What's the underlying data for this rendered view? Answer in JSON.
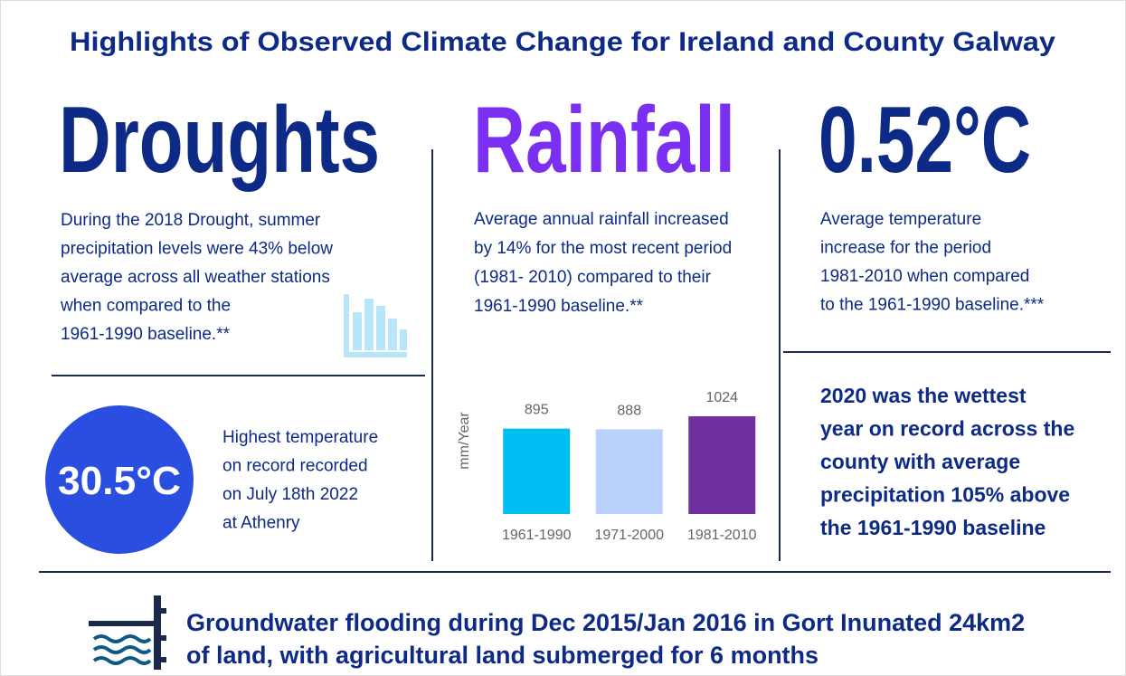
{
  "title": "Highlights of Observed Climate Change for Ireland and County Galway",
  "droughts": {
    "heading": "Droughts",
    "lines": [
      "During the 2018 Drought, summer",
      "precipitation levels were 43% below",
      "average across all weather stations",
      "when compared to the",
      "1961-1990 baseline.**"
    ]
  },
  "record": {
    "value": "30.5°C",
    "lines": [
      "Highest temperature",
      "on record recorded",
      "on July 18th 2022",
      "at Athenry"
    ]
  },
  "rainfall": {
    "heading": "Rainfall",
    "lines": [
      "Average annual rainfall increased",
      "by 14% for the most recent period",
      "(1981- 2010) compared to their",
      "1961-1990 baseline.**"
    ]
  },
  "temperature": {
    "heading": "0.52°C",
    "lines": [
      "Average temperature",
      "increase for the period",
      "1981-2010 when compared",
      "to the 1961-1990 baseline.***"
    ]
  },
  "wettest": {
    "lines": [
      "2020 was the wettest",
      "year on record across the",
      "county with average",
      "precipitation 105% above",
      "the 1961-1990 baseline"
    ]
  },
  "flooding": {
    "lines": [
      "Groundwater flooding during Dec 2015/Jan 2016 in Gort Inunated 24km2",
      "of land, with agricultural land submerged for 6 months"
    ]
  },
  "chart_data": {
    "type": "bar",
    "y_label": "mm/Year",
    "categories": [
      "1961-1990",
      "1971-2000",
      "1981-2010"
    ],
    "values": [
      895,
      888,
      1024
    ],
    "colors": [
      "#00bdf2",
      "#b9d1fb",
      "#7030a0"
    ],
    "ylim": [
      0,
      1100
    ]
  }
}
